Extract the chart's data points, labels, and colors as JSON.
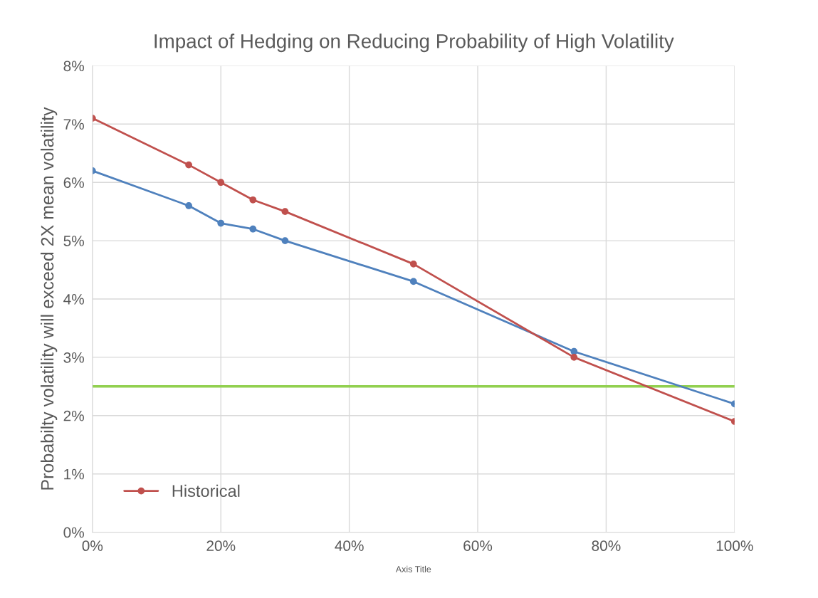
{
  "chart_data": {
    "type": "line",
    "title": "Impact of Hedging on Reducing Probability of High Volatility",
    "xlabel": "Axis Title",
    "ylabel": "Probabilty volatility will exceed 2X mean volatility",
    "x": [
      0,
      15,
      20,
      25,
      30,
      50,
      75,
      100
    ],
    "series": [
      {
        "color": "#4f81bd",
        "values": [
          6.2,
          5.6,
          5.3,
          5.2,
          5.0,
          4.3,
          3.1,
          2.2
        ]
      },
      {
        "name": "Historical",
        "color": "#c0504d",
        "values": [
          7.1,
          6.3,
          6.0,
          5.7,
          5.5,
          4.6,
          3.0,
          1.9
        ]
      }
    ],
    "ref_lines": [
      {
        "axis": "y",
        "value": 2.5,
        "color": "#92d050"
      }
    ],
    "xlim": [
      0,
      100
    ],
    "xticks": [
      {
        "value": 0,
        "label": "0%"
      },
      {
        "value": 20,
        "label": "20%"
      },
      {
        "value": 40,
        "label": "40%"
      },
      {
        "value": 60,
        "label": "60%"
      },
      {
        "value": 80,
        "label": "80%"
      },
      {
        "value": 100,
        "label": "100%"
      }
    ],
    "ylim": [
      0,
      8
    ],
    "yticks": [
      {
        "value": 0,
        "label": "0%"
      },
      {
        "value": 1,
        "label": "1%"
      },
      {
        "value": 2,
        "label": "2%"
      },
      {
        "value": 3,
        "label": "3%"
      },
      {
        "value": 4,
        "label": "4%"
      },
      {
        "value": 5,
        "label": "5%"
      },
      {
        "value": 6,
        "label": "6%"
      },
      {
        "value": 7,
        "label": "7%"
      },
      {
        "value": 8,
        "label": "8%"
      }
    ],
    "grid": true,
    "legend": "bottom left",
    "marker": "circle",
    "line_style": "solid"
  }
}
